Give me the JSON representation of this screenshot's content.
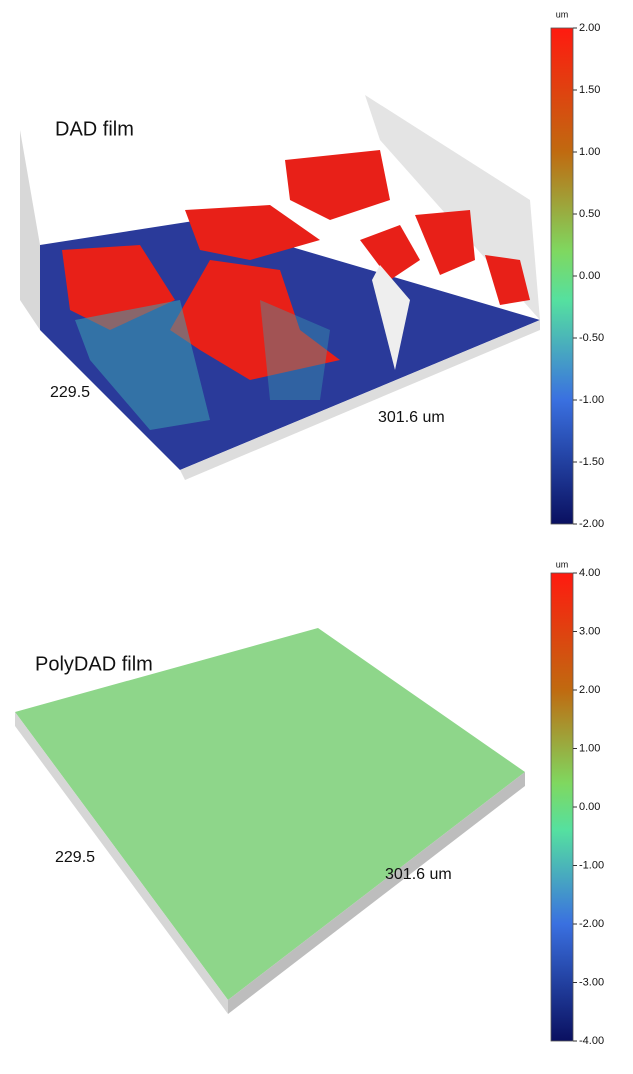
{
  "chart_data": [
    {
      "type": "surface3d",
      "title": "DAD film",
      "y_label": "229.5",
      "x_label": "301.6 um",
      "colorbar_label": "um",
      "clim": [
        -2,
        2
      ],
      "cticks": [
        {
          "value": 2,
          "label": "2.00"
        },
        {
          "value": 1.5,
          "label": "1.50"
        },
        {
          "value": 1,
          "label": "1.00"
        },
        {
          "value": 0.5,
          "label": "0.50"
        },
        {
          "value": 0,
          "label": "0.00"
        },
        {
          "value": -0.5,
          "label": "-0.50"
        },
        {
          "value": -1,
          "label": "-1.00"
        },
        {
          "value": -1.5,
          "label": "-1.50"
        },
        {
          "value": -2,
          "label": "-2.00"
        }
      ]
    },
    {
      "type": "surface3d",
      "title": "PolyDAD film",
      "y_label": "229.5",
      "x_label": "301.6 um",
      "colorbar_label": "um",
      "clim": [
        -4,
        4
      ],
      "cticks": [
        {
          "value": 4,
          "label": "4.00"
        },
        {
          "value": 3,
          "label": "3.00"
        },
        {
          "value": 2,
          "label": "2.00"
        },
        {
          "value": 1,
          "label": "1.00"
        },
        {
          "value": 0,
          "label": "0.00"
        },
        {
          "value": -1,
          "label": "-1.00"
        },
        {
          "value": -2,
          "label": "-2.00"
        },
        {
          "value": -3,
          "label": "-3.00"
        },
        {
          "value": -4,
          "label": "-4.00"
        }
      ]
    }
  ]
}
